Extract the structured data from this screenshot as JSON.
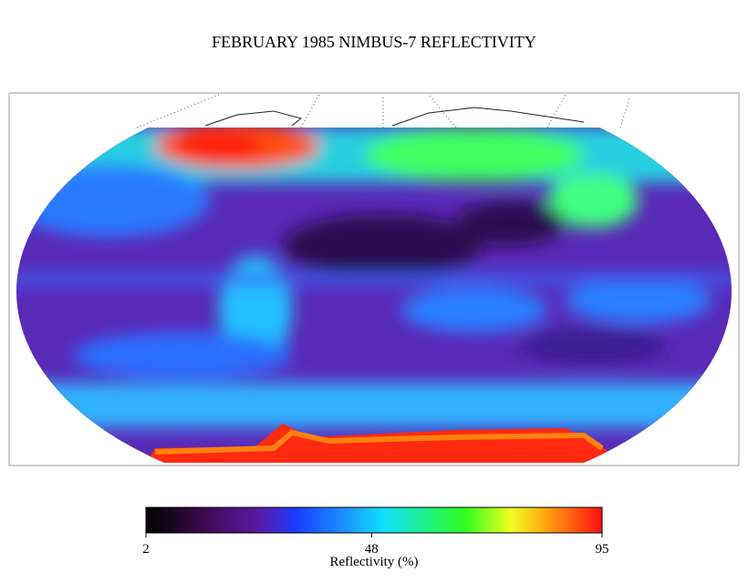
{
  "title": "FEBRUARY 1985 NIMBUS-7 REFLECTIVITY",
  "colorbar": {
    "label": "Reflectivity (%)",
    "lim": [
      2,
      95
    ],
    "ticks": [
      2,
      48,
      95
    ]
  }
}
